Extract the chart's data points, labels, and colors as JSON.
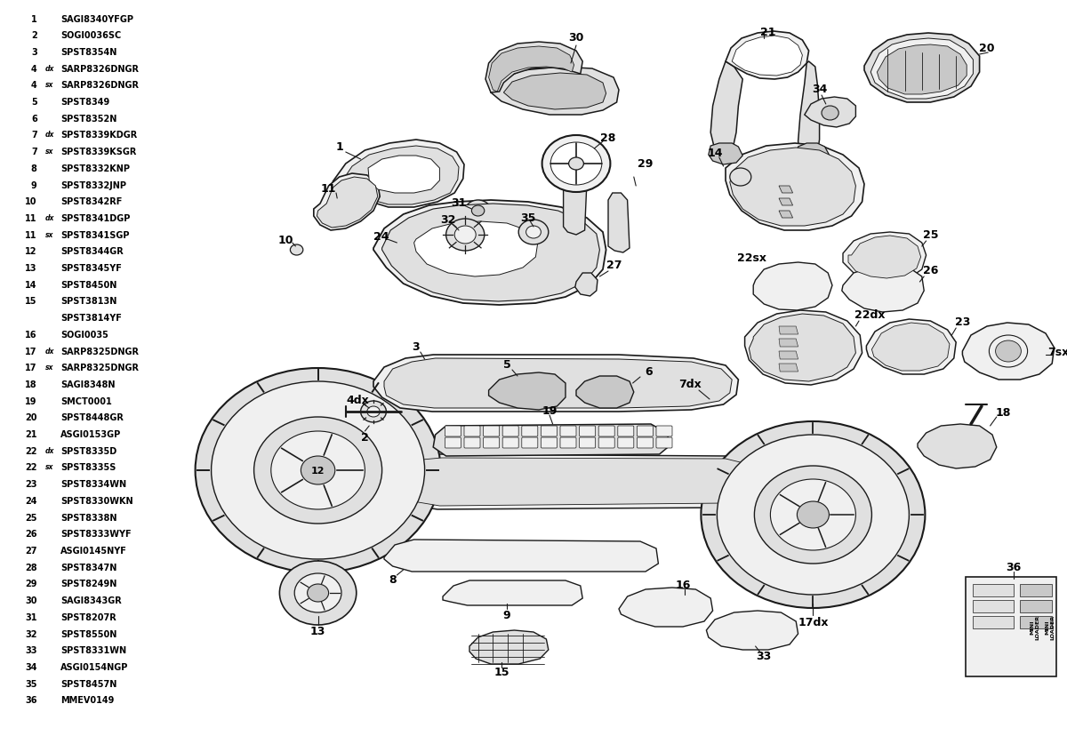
{
  "background_color": "#ffffff",
  "fig_width": 12.0,
  "fig_height": 8.29,
  "dpi": 100,
  "parts_list": [
    {
      "num": "1",
      "suffix": "",
      "code": "SAGI8340YFGP"
    },
    {
      "num": "2",
      "suffix": "",
      "code": "SOGI0036SC"
    },
    {
      "num": "3",
      "suffix": "",
      "code": "SPST8354N"
    },
    {
      "num": "4",
      "suffix": "dx",
      "code": "SARP8326DNGR"
    },
    {
      "num": "4",
      "suffix": "sx",
      "code": "SARP8326DNGR"
    },
    {
      "num": "5",
      "suffix": "",
      "code": "SPST8349"
    },
    {
      "num": "6",
      "suffix": "",
      "code": "SPST8352N"
    },
    {
      "num": "7",
      "suffix": "dx",
      "code": "SPST8339KDGR"
    },
    {
      "num": "7",
      "suffix": "sx",
      "code": "SPST8339KSGR"
    },
    {
      "num": "8",
      "suffix": "",
      "code": "SPST8332KNP"
    },
    {
      "num": "9",
      "suffix": "",
      "code": "SPST8332JNP"
    },
    {
      "num": "10",
      "suffix": "",
      "code": "SPST8342RF"
    },
    {
      "num": "11",
      "suffix": "dx",
      "code": "SPST8341DGP"
    },
    {
      "num": "11",
      "suffix": "sx",
      "code": "SPST8341SGP"
    },
    {
      "num": "12",
      "suffix": "",
      "code": "SPST8344GR"
    },
    {
      "num": "13",
      "suffix": "",
      "code": "SPST8345YF"
    },
    {
      "num": "14",
      "suffix": "",
      "code": "SPST8450N"
    },
    {
      "num": "15",
      "suffix": "",
      "code": "SPST3813N\nSPST3814YF"
    },
    {
      "num": "16",
      "suffix": "",
      "code": "SOGI0035"
    },
    {
      "num": "17",
      "suffix": "dx",
      "code": "SARP8325DNGR"
    },
    {
      "num": "17",
      "suffix": "sx",
      "code": "SARP8325DNGR"
    },
    {
      "num": "18",
      "suffix": "",
      "code": "SAGI8348N"
    },
    {
      "num": "19",
      "suffix": "",
      "code": "SMCT0001"
    },
    {
      "num": "20",
      "suffix": "",
      "code": "SPST8448GR"
    },
    {
      "num": "21",
      "suffix": "",
      "code": "ASGI0153GP"
    },
    {
      "num": "22",
      "suffix": "dx",
      "code": "SPST8335D"
    },
    {
      "num": "22",
      "suffix": "sx",
      "code": "SPST8335S"
    },
    {
      "num": "23",
      "suffix": "",
      "code": "SPST8334WN"
    },
    {
      "num": "24",
      "suffix": "",
      "code": "SPST8330WKN"
    },
    {
      "num": "25",
      "suffix": "",
      "code": "SPST8338N"
    },
    {
      "num": "26",
      "suffix": "",
      "code": "SPST8333WYF"
    },
    {
      "num": "27",
      "suffix": "",
      "code": "ASGI0145NYF"
    },
    {
      "num": "28",
      "suffix": "",
      "code": "SPST8347N"
    },
    {
      "num": "29",
      "suffix": "",
      "code": "SPST8249N"
    },
    {
      "num": "30",
      "suffix": "",
      "code": "SAGI8343GR"
    },
    {
      "num": "31",
      "suffix": "",
      "code": "SPST8207R"
    },
    {
      "num": "32",
      "suffix": "",
      "code": "SPST8550N"
    },
    {
      "num": "33",
      "suffix": "",
      "code": "SPST8331WN"
    },
    {
      "num": "34",
      "suffix": "",
      "code": "ASGI0154NGP"
    },
    {
      "num": "35",
      "suffix": "",
      "code": "SPST8457N"
    },
    {
      "num": "36",
      "suffix": "",
      "code": "MMEV0149"
    }
  ],
  "ec": "#1a1a1a",
  "fc_light": "#f0f0f0",
  "fc_mid": "#e0e0e0",
  "fc_dark": "#c8c8c8"
}
